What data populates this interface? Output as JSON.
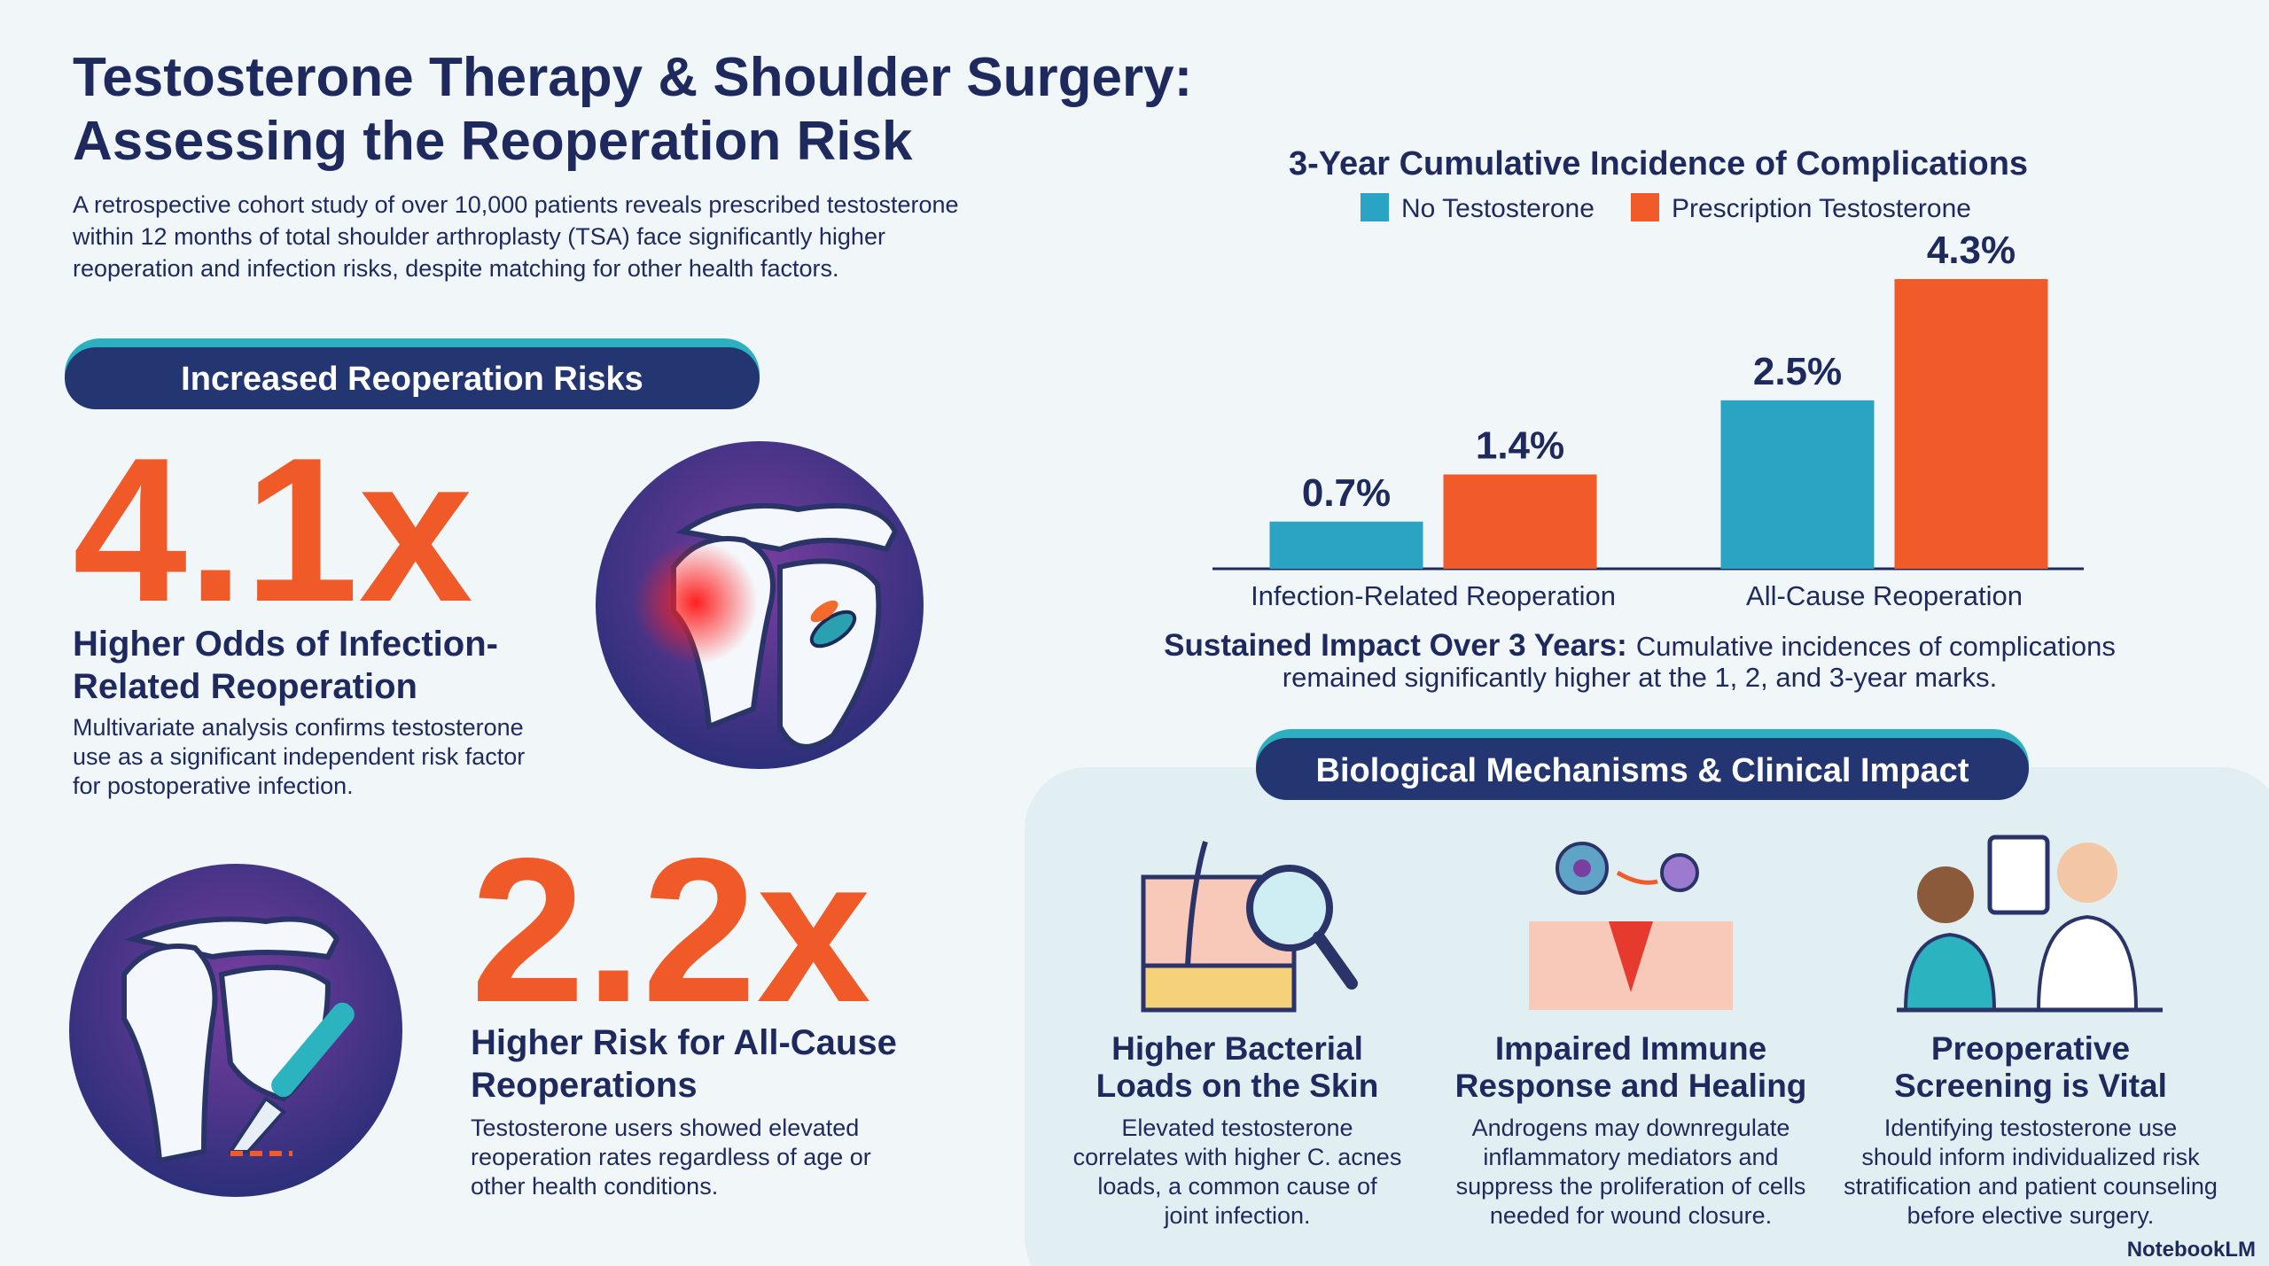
{
  "header": {
    "title": [
      "Testosterone Therapy & Shoulder Surgery:",
      "Assessing the Reoperation Risk"
    ],
    "subtitle": [
      "A retrospective cohort study of over 10,000 patients reveals prescribed testosterone",
      "within 12 months of total shoulder arthroplasty (TSA) face significantly higher",
      "reoperation and infection risks, despite matching for other health factors."
    ]
  },
  "risks": {
    "heading": "Increased Reoperation Risks",
    "items": [
      {
        "stat": "4.1x",
        "title": [
          "Higher Odds of Infection-",
          "Related Reoperation"
        ],
        "body": [
          "Multivariate analysis confirms testosterone",
          "use as a significant independent risk factor",
          "for postoperative infection."
        ]
      },
      {
        "stat": "2.2x",
        "title": [
          "Higher Risk for All-Cause",
          "Reoperations"
        ],
        "body": [
          "Testosterone users showed elevated",
          "reoperation rates regardless of age or",
          "other health conditions."
        ]
      }
    ]
  },
  "chart_data": {
    "type": "bar",
    "title": "3-Year Cumulative Incidence of Complications",
    "categories": [
      "Infection-Related Reoperation",
      "All-Cause Reoperation"
    ],
    "series": [
      {
        "name": "No Testosterone",
        "color": "#2ba3c2",
        "values": [
          0.7,
          2.5
        ],
        "value_labels": [
          "0.7%",
          "2.5%"
        ]
      },
      {
        "name": "Prescription Testosterone",
        "color": "#f15a29",
        "values": [
          1.4,
          4.3
        ],
        "value_labels": [
          "1.4%",
          "4.3%"
        ]
      }
    ]
  },
  "chart_note": {
    "bold": "Sustained Impact Over 3 Years:",
    "text": [
      "Cumulative incidences of complications",
      "remained significantly higher at the 1, 2, and 3-year marks."
    ]
  },
  "mechanisms": {
    "heading": "Biological Mechanisms & Clinical Impact",
    "items": [
      {
        "title": [
          "Higher Bacterial",
          "Loads on the Skin"
        ],
        "body": [
          "Elevated testosterone",
          "correlates with higher C. acnes",
          "loads, a common cause of",
          "joint infection."
        ]
      },
      {
        "title": [
          "Impaired Immune",
          "Response and Healing"
        ],
        "body": [
          "Androgens may downregulate",
          "inflammatory mediators and",
          "suppress the proliferation of cells",
          "needed for wound closure."
        ]
      },
      {
        "title": [
          "Preoperative",
          "Screening is Vital"
        ],
        "body": [
          "Identifying testosterone use",
          "should inform individualized risk",
          "stratification and patient counseling",
          "before elective surgery."
        ]
      }
    ]
  },
  "footer": {
    "brand": "NotebookLM"
  }
}
